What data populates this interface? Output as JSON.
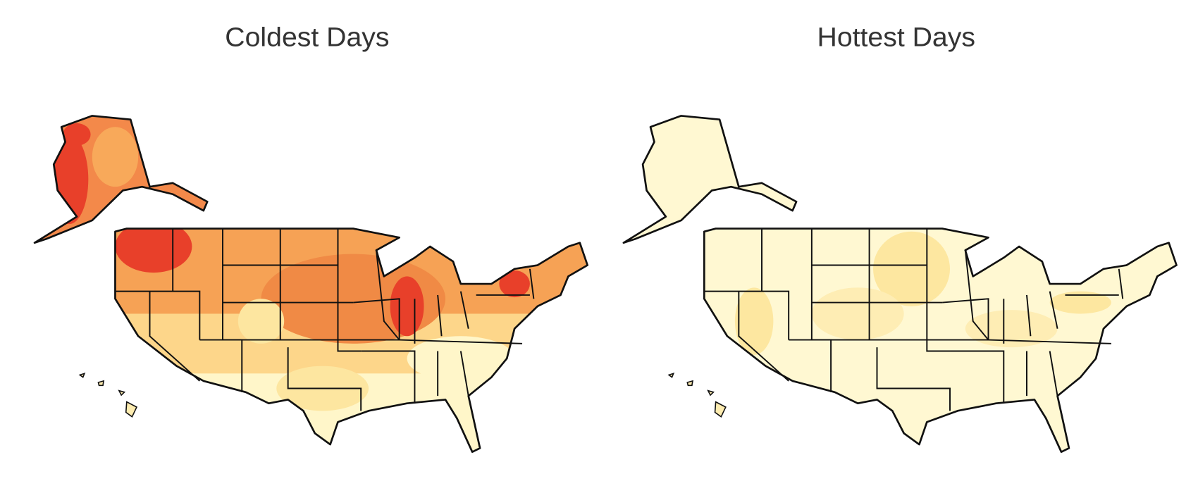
{
  "maps": [
    {
      "title": "Coldest Days"
    },
    {
      "title": "Hottest Days"
    }
  ]
}
